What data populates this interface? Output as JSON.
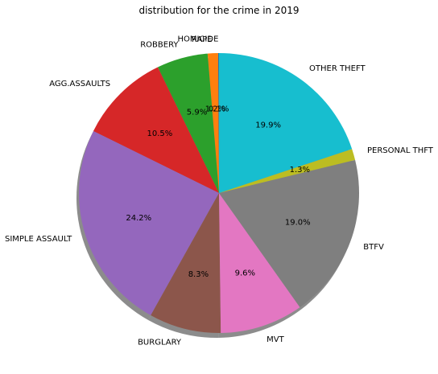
{
  "chart_data": {
    "type": "pie",
    "title": "distribution for the crime in 2019",
    "labels": [
      "HOMICIDE",
      "RAPE",
      "ROBBERY",
      "AGG.ASSAULTS",
      "SIMPLE ASSAULT",
      "BURGLARY",
      "MVT",
      "BTFV",
      "PERSONAL THFT",
      "OTHER THEFT"
    ],
    "values": [
      0.1,
      1.2,
      5.9,
      10.5,
      24.2,
      8.3,
      9.6,
      19.0,
      1.3,
      19.9
    ],
    "percent_labels": [
      "0.1%",
      "1.2%",
      "5.9%",
      "10.5%",
      "24.2%",
      "8.3%",
      "9.6%",
      "19.0%",
      "1.3%",
      "19.9%"
    ],
    "colors": [
      "#1f77b4",
      "#ff7f0e",
      "#2ca02c",
      "#d62728",
      "#9467bd",
      "#8c564b",
      "#e377c2",
      "#7f7f7f",
      "#bcbd22",
      "#17becf"
    ],
    "start_angle_deg": 90,
    "direction": "counterclockwise",
    "shadow": true,
    "legend": "none"
  }
}
